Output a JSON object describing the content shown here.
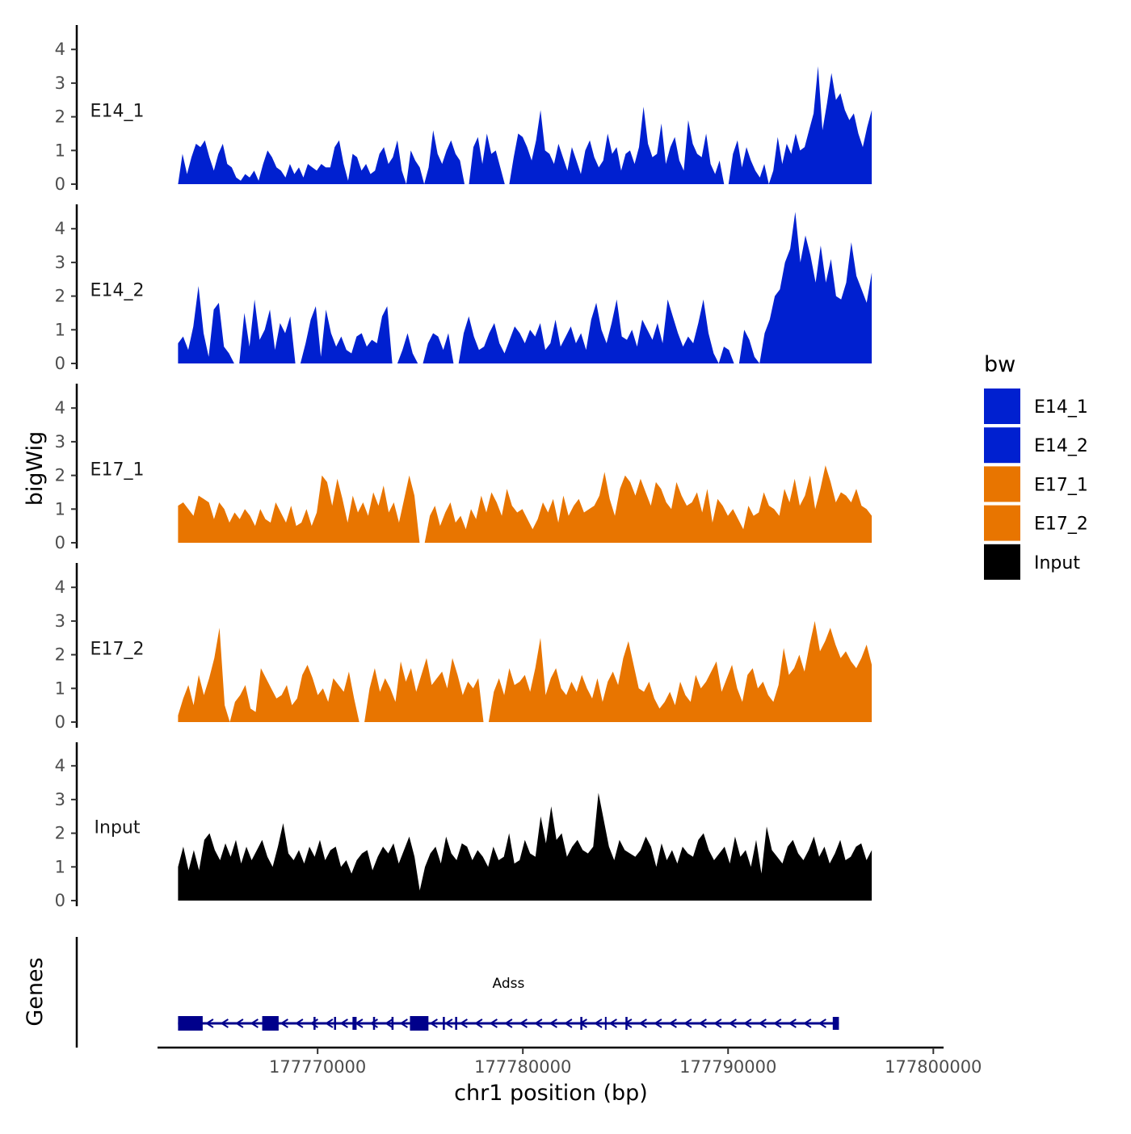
{
  "chart_data": {
    "type": "area",
    "y_axis_title": "bigWig",
    "genes_axis_title": "Genes",
    "x_axis_title": "chr1 position (bp)",
    "x_range": [
      177762200,
      177800500
    ],
    "x_ticks": [
      177770000,
      177780000,
      177790000,
      177800000
    ],
    "x_tick_labels": [
      "177770000",
      "177780000",
      "177790000",
      "177800000"
    ],
    "y_range": [
      0,
      4.7
    ],
    "y_ticks": [
      0,
      1,
      2,
      3,
      4
    ],
    "y_tick_labels": [
      "0",
      "1",
      "2",
      "3",
      "4"
    ],
    "signal_start": 177763200,
    "signal_end": 177797000,
    "legend": {
      "title": "bw",
      "position": "right",
      "entries": [
        {
          "label": "E14_1",
          "color": "#0020d0"
        },
        {
          "label": "E14_2",
          "color": "#0020d0"
        },
        {
          "label": "E17_1",
          "color": "#e87500"
        },
        {
          "label": "E17_2",
          "color": "#e87500"
        },
        {
          "label": "Input",
          "color": "#000000"
        }
      ]
    },
    "series": [
      {
        "name": "E14_1",
        "color": "#0020d0",
        "values": [
          0,
          0.9,
          0.3,
          0.8,
          1.2,
          1.1,
          1.3,
          0.8,
          0.4,
          0.9,
          1.2,
          0.6,
          0.5,
          0.2,
          0.1,
          0.3,
          0.2,
          0.4,
          0.1,
          0.6,
          1.0,
          0.8,
          0.5,
          0.4,
          0.2,
          0.6,
          0.3,
          0.5,
          0.2,
          0.6,
          0.5,
          0.4,
          0.6,
          0.5,
          0.5,
          1.1,
          1.3,
          0.6,
          0.1,
          0.9,
          0.8,
          0.4,
          0.6,
          0.3,
          0.4,
          0.9,
          1.1,
          0.6,
          0.8,
          1.3,
          0.4,
          0,
          1.0,
          0.7,
          0.5,
          0,
          0.5,
          1.6,
          0.9,
          0.6,
          1.0,
          1.3,
          0.9,
          0.7,
          0,
          0,
          1.1,
          1.4,
          0.6,
          1.5,
          0.9,
          1.0,
          0.5,
          0,
          0,
          0.8,
          1.5,
          1.4,
          1.1,
          0.7,
          1.3,
          2.2,
          1.0,
          0.9,
          0.6,
          1.2,
          0.8,
          0.4,
          1.1,
          0.7,
          0.3,
          1.0,
          1.3,
          0.8,
          0.5,
          0.7,
          1.5,
          0.9,
          1.1,
          0.4,
          0.9,
          1.0,
          0.6,
          1.1,
          2.3,
          1.2,
          0.8,
          0.9,
          1.8,
          0.6,
          1.1,
          1.4,
          0.7,
          0.4,
          1.9,
          1.2,
          0.9,
          0.8,
          1.5,
          0.6,
          0.3,
          0.7,
          0,
          0,
          0.9,
          1.3,
          0.5,
          1.1,
          0.7,
          0.4,
          0.2,
          0.6,
          0,
          0.4,
          1.4,
          0.6,
          1.2,
          0.9,
          1.5,
          1.0,
          1.1,
          1.6,
          2.1,
          3.5,
          1.6,
          2.4,
          3.3,
          2.5,
          2.7,
          2.2,
          1.9,
          2.1,
          1.5,
          1.1,
          1.7,
          2.2
        ]
      },
      {
        "name": "E14_2",
        "color": "#0020d0",
        "values": [
          0.6,
          0.8,
          0.4,
          1.1,
          2.3,
          0.9,
          0.2,
          1.6,
          1.8,
          0.5,
          0.3,
          0,
          0,
          1.5,
          0.5,
          1.9,
          0.7,
          1.0,
          1.6,
          0.4,
          1.2,
          0.9,
          1.4,
          0,
          0,
          0.6,
          1.3,
          1.7,
          0.2,
          1.6,
          0.9,
          0.5,
          0.8,
          0.4,
          0.3,
          0.8,
          0.9,
          0.5,
          0.7,
          0.6,
          1.4,
          1.7,
          0,
          0,
          0.4,
          0.9,
          0.3,
          0,
          0,
          0.6,
          0.9,
          0.8,
          0.4,
          0.9,
          0,
          0,
          0.9,
          1.4,
          0.8,
          0.4,
          0.5,
          0.9,
          1.2,
          0.6,
          0.3,
          0.7,
          1.1,
          0.9,
          0.6,
          1.0,
          0.8,
          1.2,
          0.4,
          0.6,
          1.3,
          0.5,
          0.8,
          1.1,
          0.6,
          0.9,
          0.4,
          1.3,
          1.8,
          1.0,
          0.6,
          1.2,
          1.9,
          0.8,
          0.7,
          1.0,
          0.5,
          1.3,
          1.0,
          0.7,
          1.2,
          0.6,
          1.9,
          1.4,
          0.9,
          0.5,
          0.8,
          0.6,
          1.2,
          1.9,
          0.9,
          0.3,
          0,
          0.5,
          0.4,
          0,
          0,
          1.0,
          0.7,
          0.2,
          0,
          0.9,
          1.3,
          2.0,
          2.2,
          3.0,
          3.4,
          4.5,
          3.0,
          3.8,
          3.2,
          2.4,
          3.5,
          2.4,
          3.1,
          2.0,
          1.9,
          2.4,
          3.6,
          2.6,
          2.2,
          1.8,
          2.7
        ]
      },
      {
        "name": "E17_1",
        "color": "#e87500",
        "values": [
          1.1,
          1.2,
          1.0,
          0.8,
          1.4,
          1.3,
          1.2,
          0.7,
          1.2,
          1.0,
          0.6,
          0.9,
          0.7,
          1.0,
          0.8,
          0.5,
          1.0,
          0.7,
          0.6,
          1.2,
          0.9,
          0.6,
          1.1,
          0.5,
          0.6,
          1.0,
          0.5,
          0.9,
          2.0,
          1.8,
          1.1,
          1.9,
          1.3,
          0.6,
          1.4,
          0.9,
          1.2,
          0.8,
          1.5,
          1.1,
          1.7,
          0.9,
          1.2,
          0.6,
          1.3,
          2.0,
          1.4,
          0,
          0,
          0.8,
          1.1,
          0.5,
          0.9,
          1.2,
          0.6,
          0.8,
          0.4,
          1.0,
          0.7,
          1.4,
          0.9,
          1.5,
          1.2,
          0.8,
          1.6,
          1.1,
          0.9,
          1.0,
          0.7,
          0.4,
          0.7,
          1.2,
          0.9,
          1.3,
          0.6,
          1.4,
          0.8,
          1.1,
          1.3,
          0.9,
          1.0,
          1.1,
          1.4,
          2.1,
          1.3,
          0.8,
          1.6,
          2.0,
          1.8,
          1.4,
          1.9,
          1.5,
          1.1,
          1.8,
          1.6,
          1.2,
          1.0,
          1.8,
          1.4,
          1.1,
          1.2,
          1.5,
          0.9,
          1.6,
          0.6,
          1.3,
          1.1,
          0.8,
          1.0,
          0.7,
          0.4,
          1.1,
          0.8,
          0.9,
          1.5,
          1.1,
          1.0,
          0.8,
          1.6,
          1.2,
          1.9,
          1.1,
          1.4,
          2.0,
          1.0,
          1.6,
          2.3,
          1.8,
          1.2,
          1.5,
          1.4,
          1.2,
          1.6,
          1.1,
          1.0,
          0.8
        ]
      },
      {
        "name": "E17_2",
        "color": "#e87500",
        "values": [
          0.2,
          0.7,
          1.1,
          0.5,
          1.4,
          0.8,
          1.3,
          1.9,
          2.8,
          0.5,
          0,
          0.6,
          0.8,
          1.1,
          0.4,
          0.3,
          1.6,
          1.3,
          1.0,
          0.7,
          0.8,
          1.1,
          0.5,
          0.7,
          1.4,
          1.7,
          1.3,
          0.8,
          1.0,
          0.6,
          1.3,
          1.1,
          0.9,
          1.5,
          0.7,
          0,
          0,
          1.0,
          1.6,
          0.9,
          1.3,
          1.0,
          0.6,
          1.8,
          1.2,
          1.6,
          0.9,
          1.4,
          1.9,
          1.1,
          1.3,
          1.5,
          1.0,
          1.9,
          1.4,
          0.8,
          1.2,
          1.0,
          1.3,
          0,
          0,
          0.9,
          1.3,
          0.8,
          1.6,
          1.1,
          1.2,
          1.4,
          0.9,
          1.6,
          2.5,
          0.8,
          1.3,
          1.6,
          1.0,
          0.8,
          1.2,
          0.9,
          1.4,
          1.0,
          0.7,
          1.3,
          0.6,
          1.2,
          1.5,
          1.1,
          1.9,
          2.4,
          1.7,
          1.0,
          0.9,
          1.2,
          0.7,
          0.4,
          0.6,
          0.9,
          0.5,
          1.2,
          0.8,
          0.6,
          1.4,
          1.0,
          1.2,
          1.5,
          1.8,
          0.9,
          1.3,
          1.7,
          1.0,
          0.6,
          1.4,
          1.6,
          1.0,
          1.2,
          0.8,
          0.6,
          1.1,
          2.2,
          1.4,
          1.6,
          2.0,
          1.5,
          2.3,
          3.0,
          2.1,
          2.4,
          2.8,
          2.3,
          1.9,
          2.1,
          1.8,
          1.6,
          1.9,
          2.3,
          1.7
        ]
      },
      {
        "name": "Input",
        "color": "#000000",
        "values": [
          1.0,
          1.6,
          0.9,
          1.5,
          0.9,
          1.8,
          2.0,
          1.5,
          1.2,
          1.7,
          1.3,
          1.8,
          1.1,
          1.6,
          1.2,
          1.5,
          1.8,
          1.3,
          1.0,
          1.6,
          2.3,
          1.4,
          1.2,
          1.5,
          1.1,
          1.6,
          1.3,
          1.8,
          1.2,
          1.5,
          1.6,
          1.0,
          1.2,
          0.8,
          1.2,
          1.4,
          1.5,
          0.9,
          1.3,
          1.6,
          1.4,
          1.7,
          1.1,
          1.5,
          1.9,
          1.3,
          0.3,
          1.0,
          1.4,
          1.6,
          1.1,
          1.9,
          1.4,
          1.2,
          1.7,
          1.6,
          1.2,
          1.5,
          1.3,
          1.0,
          1.6,
          1.2,
          1.3,
          2.0,
          1.1,
          1.2,
          1.8,
          1.4,
          1.3,
          2.5,
          1.7,
          2.8,
          1.8,
          2.0,
          1.3,
          1.6,
          1.8,
          1.5,
          1.4,
          1.6,
          3.2,
          2.4,
          1.6,
          1.2,
          1.8,
          1.5,
          1.4,
          1.3,
          1.5,
          1.9,
          1.6,
          1.0,
          1.7,
          1.2,
          1.5,
          1.1,
          1.6,
          1.4,
          1.3,
          1.8,
          2.0,
          1.5,
          1.2,
          1.4,
          1.6,
          1.1,
          1.9,
          1.3,
          1.5,
          1.0,
          1.8,
          0.8,
          2.2,
          1.5,
          1.3,
          1.1,
          1.6,
          1.8,
          1.4,
          1.2,
          1.5,
          1.9,
          1.3,
          1.6,
          1.1,
          1.4,
          1.8,
          1.2,
          1.3,
          1.6,
          1.7,
          1.2,
          1.5
        ]
      }
    ],
    "genes": [
      {
        "name": "Adss",
        "strand": "-",
        "start": 177763200,
        "end": 177795400,
        "exons": [
          [
            177763200,
            177764400
          ],
          [
            177767300,
            177768100
          ],
          [
            177769800,
            177769900
          ],
          [
            177770800,
            177770900
          ],
          [
            177771700,
            177771900
          ],
          [
            177772700,
            177772800
          ],
          [
            177773600,
            177773700
          ],
          [
            177774500,
            177775400
          ],
          [
            177776100,
            177776200
          ],
          [
            177776700,
            177776800
          ],
          [
            177782800,
            177782900
          ],
          [
            177784000,
            177784050
          ],
          [
            177785000,
            177785100
          ],
          [
            177795100,
            177795400
          ]
        ]
      }
    ]
  }
}
